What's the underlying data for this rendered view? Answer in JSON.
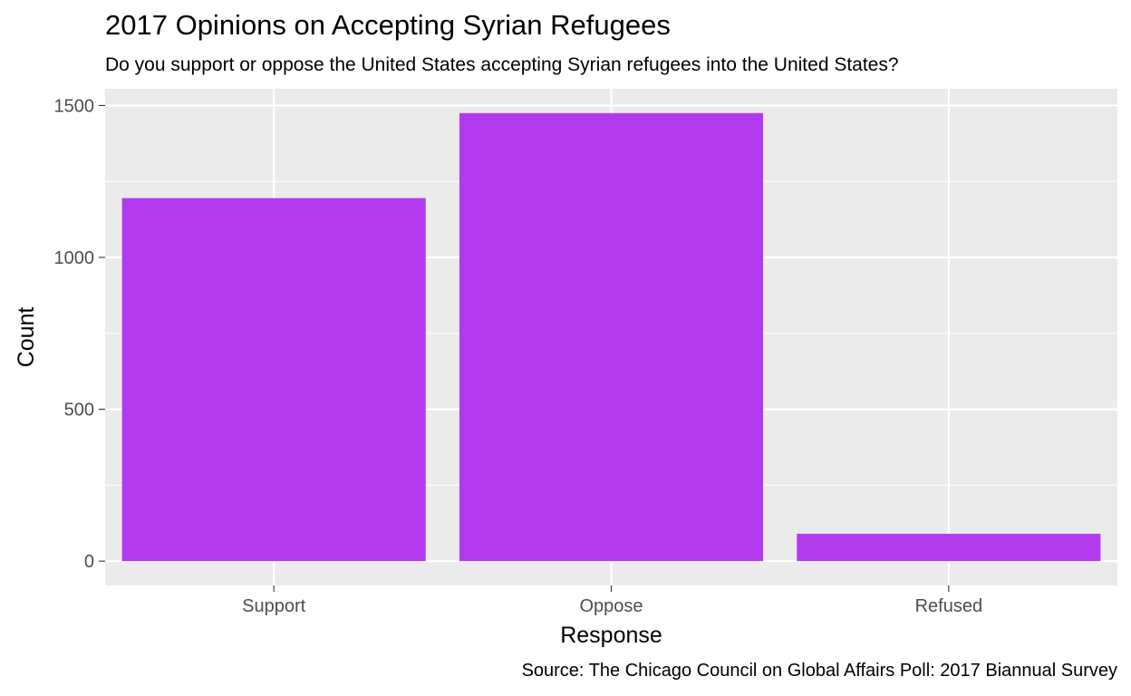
{
  "chart_data": {
    "type": "bar",
    "title": "2017 Opinions on Accepting Syrian Refugees",
    "subtitle": "Do you support or oppose the United States accepting Syrian refugees into the United States?",
    "caption": "Source: The Chicago Council on Global Affairs Poll: 2017 Biannual Survey",
    "xlabel": "Response",
    "ylabel": "Count",
    "categories": [
      "Support",
      "Oppose",
      "Refused"
    ],
    "values": [
      1195,
      1475,
      90
    ],
    "ylim": [
      -80,
      1555
    ],
    "yticks": [
      0,
      500,
      1000,
      1500
    ],
    "ytick_labels": [
      "0",
      "500",
      "1000",
      "1500"
    ],
    "grid": true,
    "bar_color": "#B23AEE",
    "panel_color": "#EBEBEB",
    "grid_color": "#FFFFFF"
  }
}
